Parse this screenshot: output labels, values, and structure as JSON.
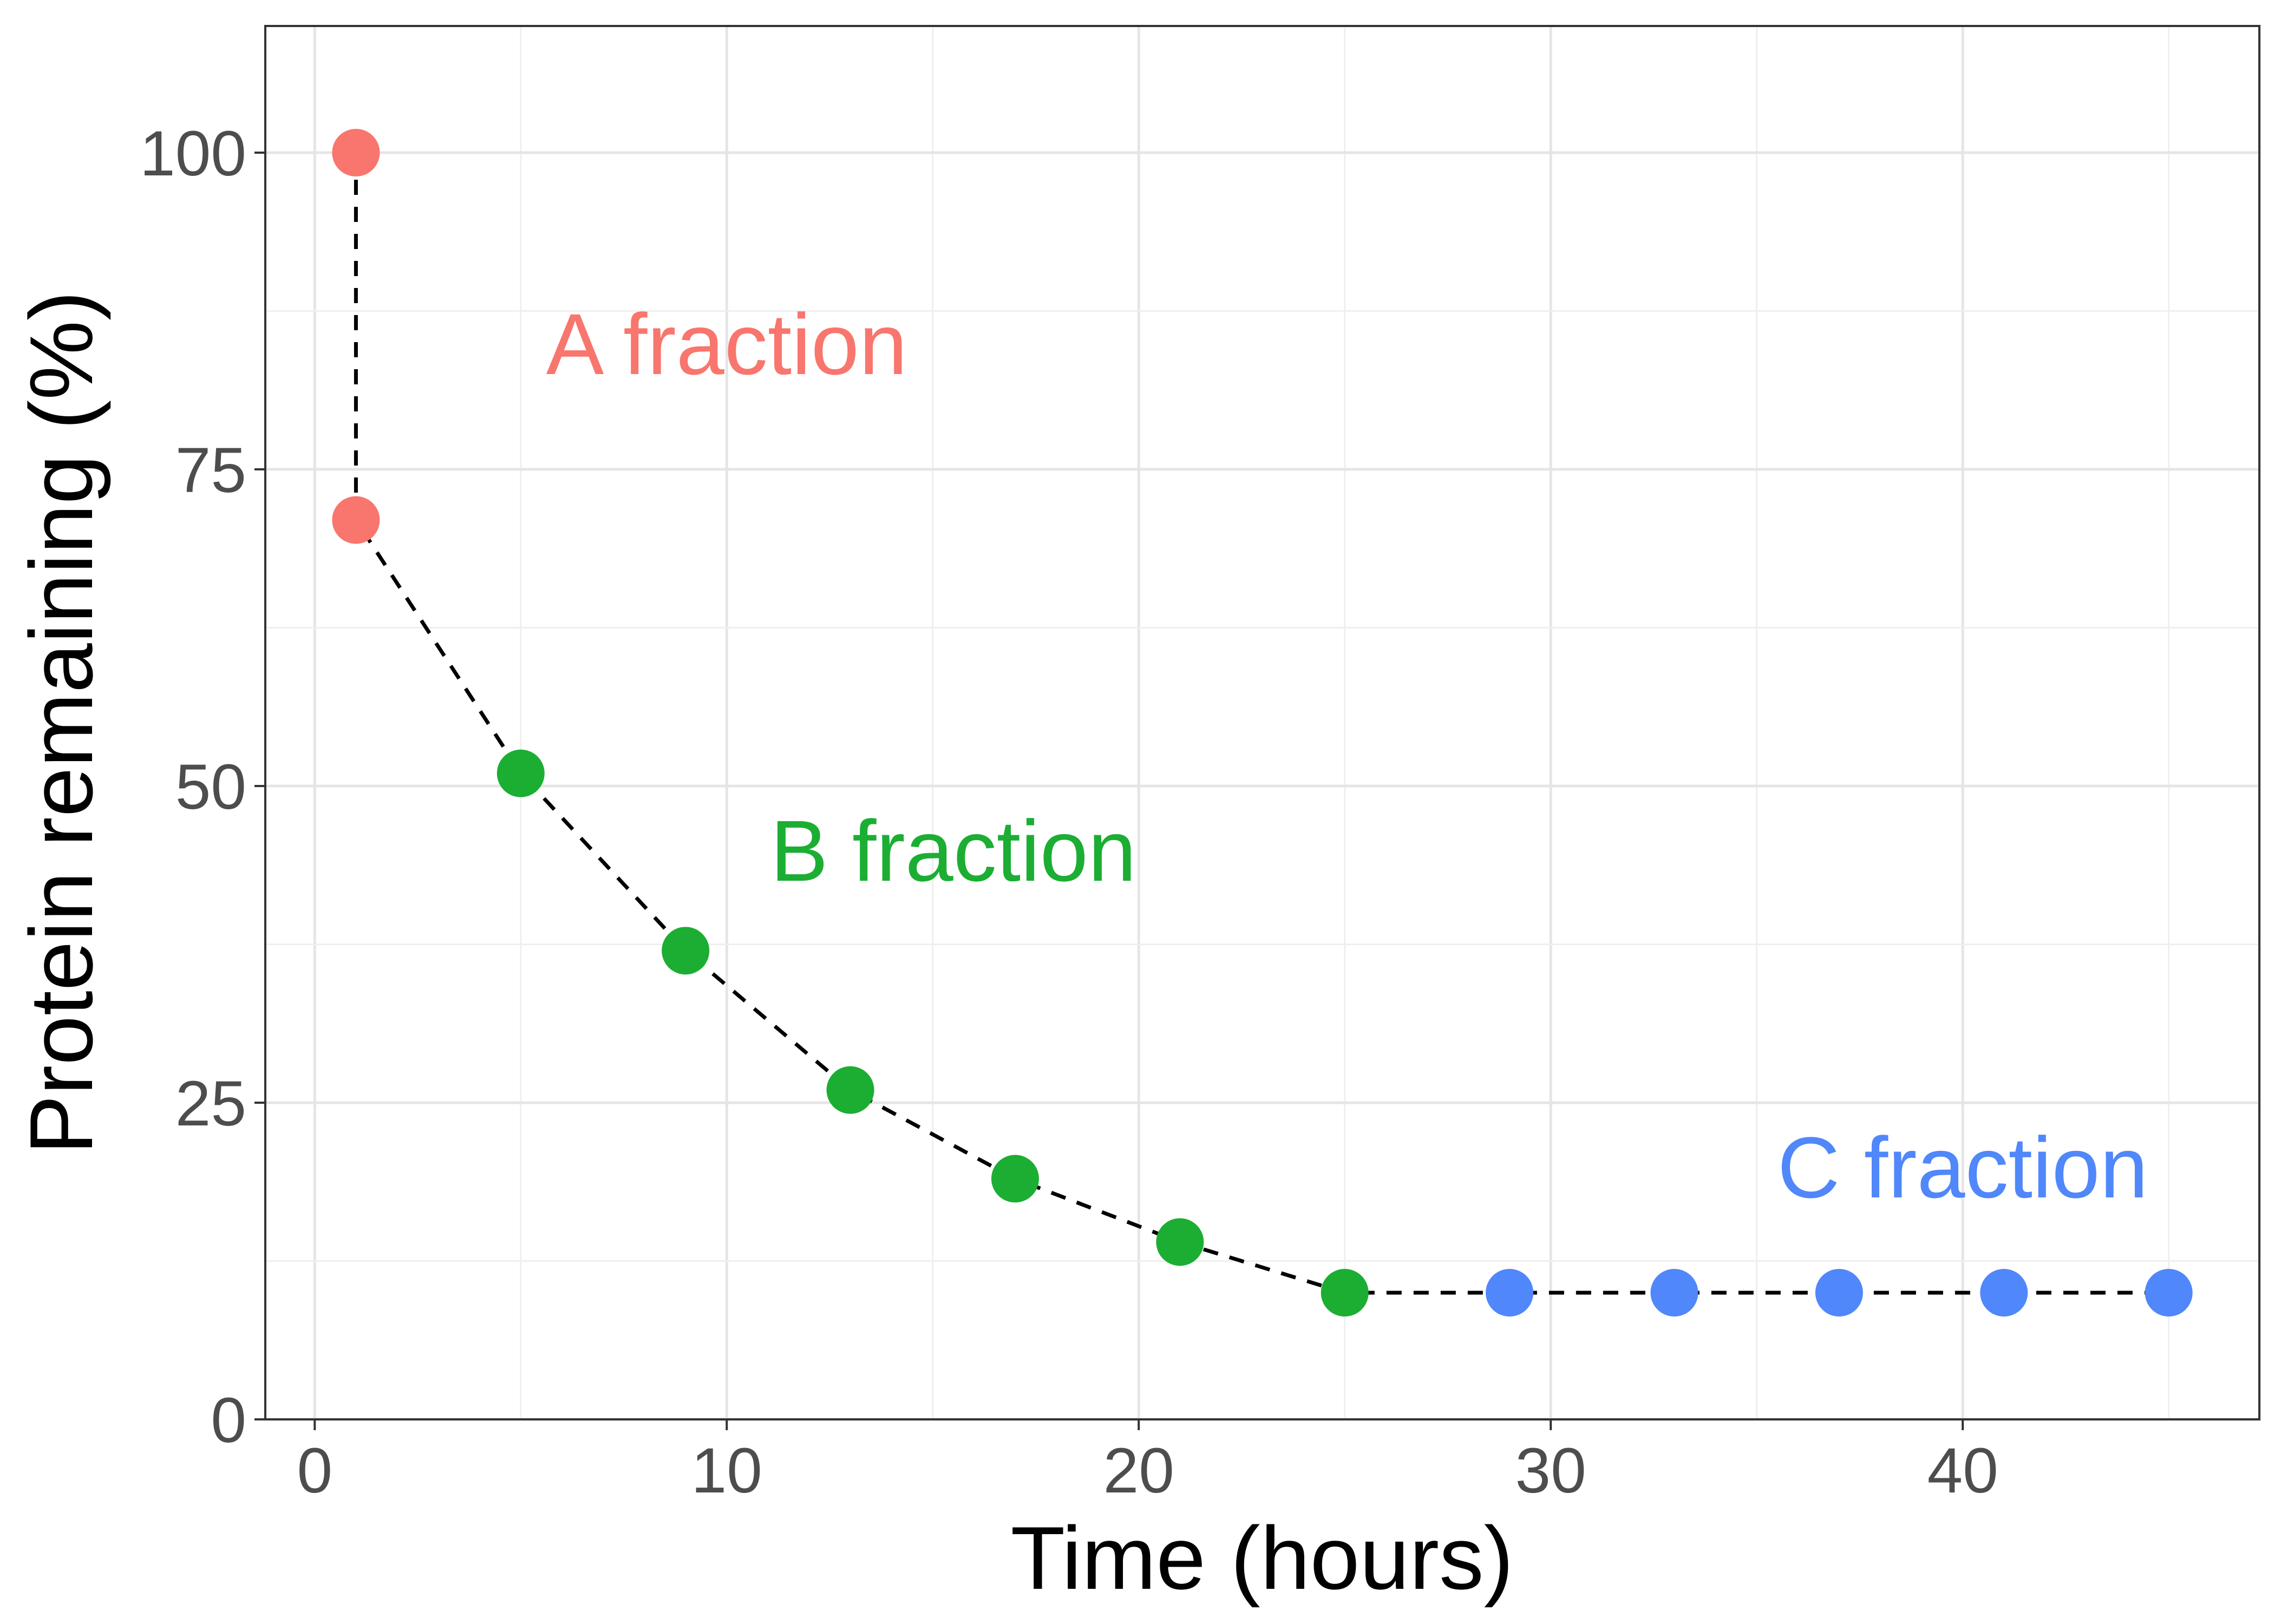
{
  "chart_data": {
    "type": "scatter",
    "title": "",
    "xlabel": "Time (hours)",
    "ylabel": "Protein remaining (%)",
    "xlim": [
      -1.2,
      47.2
    ],
    "ylim": [
      0,
      110
    ],
    "xticks": [
      0,
      10,
      20,
      30,
      40
    ],
    "yticks": [
      0,
      25,
      50,
      75,
      100
    ],
    "xtick_labels": [
      "0",
      "10",
      "20",
      "30",
      "40"
    ],
    "ytick_labels": [
      "0",
      "25",
      "50",
      "75",
      "100"
    ],
    "grid": true,
    "series": [
      {
        "name": "A fraction",
        "color": "#F8766D",
        "x": [
          1,
          1
        ],
        "y": [
          100,
          71
        ]
      },
      {
        "name": "B fraction",
        "color": "#1BAE33",
        "x": [
          5,
          9,
          13,
          17,
          21,
          25
        ],
        "y": [
          51,
          37,
          26,
          19,
          14,
          10
        ]
      },
      {
        "name": "C fraction",
        "color": "#5087FA",
        "x": [
          29,
          33,
          37,
          41,
          45
        ],
        "y": [
          10,
          10,
          10,
          10,
          10
        ]
      }
    ],
    "line": {
      "style": "dashed",
      "color": "#000000",
      "x": [
        1,
        1,
        5,
        9,
        13,
        17,
        21,
        25,
        29,
        33,
        37,
        41,
        45
      ],
      "y": [
        100,
        71,
        51,
        37,
        26,
        19,
        14,
        10,
        10,
        10,
        10,
        10,
        10
      ]
    },
    "annotations": [
      {
        "text": "A fraction",
        "x": 10,
        "y": 85,
        "color": "#F8766D"
      },
      {
        "text": "B fraction",
        "x": 15.5,
        "y": 45,
        "color": "#1BAE33"
      },
      {
        "text": "C fraction",
        "x": 40,
        "y": 20,
        "color": "#5087FA"
      }
    ]
  }
}
